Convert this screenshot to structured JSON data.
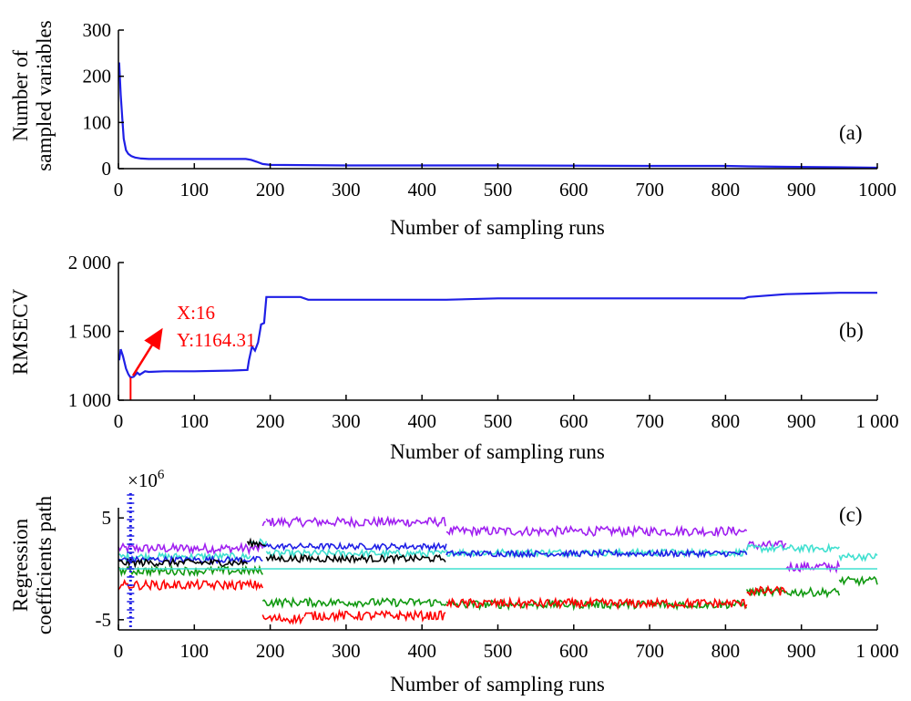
{
  "colors": {
    "blue": "#1f1fe6",
    "red": "#ff0000",
    "green": "#119911",
    "purple": "#a020f0",
    "cyan": "#40e0d0",
    "black": "#000000"
  },
  "chart_data": [
    {
      "id": "a",
      "type": "line",
      "panel_label": "(a)",
      "ylabel": [
        "Number of",
        "sampled variables"
      ],
      "xlabel": "Number of sampling runs",
      "xlim": [
        0,
        1000
      ],
      "ylim": [
        0,
        300
      ],
      "xticks": [
        "0",
        "100",
        "200",
        "300",
        "400",
        "500",
        "600",
        "700",
        "800",
        "900",
        "1000"
      ],
      "yticks": [
        "0",
        "100",
        "200",
        "300"
      ],
      "ytick_values": [
        0,
        100,
        200,
        300
      ],
      "series": [
        {
          "color": "#1f1fe6",
          "x": [
            1,
            3,
            5,
            7,
            10,
            13,
            17,
            22,
            30,
            40,
            60,
            100,
            140,
            168,
            175,
            182,
            190,
            200,
            300,
            500,
            700,
            800,
            830,
            880,
            950,
            1000
          ],
          "y": [
            230,
            160,
            110,
            65,
            40,
            32,
            27,
            24,
            22,
            21,
            21,
            21,
            21,
            21,
            19,
            15,
            10,
            8,
            7,
            7,
            6,
            6,
            5,
            4,
            3,
            2
          ]
        }
      ]
    },
    {
      "id": "b",
      "type": "line",
      "panel_label": "(b)",
      "ylabel": "RMSECV",
      "xlabel": "Number of sampling runs",
      "xlim": [
        0,
        1000
      ],
      "ylim": [
        1000,
        2000
      ],
      "xticks": [
        "0",
        "100",
        "200",
        "300",
        "400",
        "500",
        "600",
        "700",
        "800",
        "900",
        "1 000"
      ],
      "yticks": [
        "1 000",
        "1 500",
        "2 000"
      ],
      "ytick_values": [
        1000,
        1500,
        2000
      ],
      "series": [
        {
          "color": "#1f1fe6",
          "x": [
            1,
            3,
            6,
            10,
            13,
            16,
            20,
            25,
            28,
            35,
            40,
            60,
            100,
            150,
            170,
            172,
            176,
            180,
            184,
            188,
            192,
            195,
            200,
            240,
            250,
            300,
            432,
            500,
            700,
            825,
            830,
            880,
            950,
            1000
          ],
          "y": [
            1290,
            1370,
            1320,
            1230,
            1190,
            1164.31,
            1170,
            1200,
            1185,
            1210,
            1205,
            1210,
            1210,
            1215,
            1220,
            1290,
            1390,
            1360,
            1420,
            1550,
            1560,
            1750,
            1750,
            1750,
            1730,
            1730,
            1730,
            1740,
            1740,
            1740,
            1750,
            1770,
            1780,
            1780
          ]
        }
      ],
      "annotation": {
        "lines": [
          "X:16",
          "Y:1164.31"
        ],
        "x": 16,
        "y": 1164.31
      }
    },
    {
      "id": "c",
      "type": "line",
      "panel_label": "(c)",
      "ylabel": [
        "Regression",
        "coefficients path"
      ],
      "xlabel": "Number of sampling runs",
      "multiplier": "×10",
      "multiplier_exp": "6",
      "xlim": [
        0,
        1000
      ],
      "ylim": [
        -6,
        6
      ],
      "xticks": [
        "0",
        "100",
        "200",
        "300",
        "400",
        "500",
        "600",
        "700",
        "800",
        "900",
        "1 000"
      ],
      "yticks": [
        "-5",
        "5"
      ],
      "ytick_values": [
        -5,
        5
      ],
      "marker_x": 16,
      "series": [
        {
          "color": "#a020f0",
          "segments": [
            [
              0,
              190,
              2.0
            ],
            [
              190,
              195,
              4.5
            ],
            [
              195,
              432,
              4.6
            ],
            [
              432,
              828,
              3.7
            ],
            [
              828,
              880,
              2.3
            ],
            [
              880,
              950,
              0.2
            ]
          ],
          "noise": 0.45
        },
        {
          "color": "#40e0d0",
          "segments": [
            [
              0,
              175,
              1.2
            ],
            [
              175,
              195,
              2.6
            ],
            [
              195,
              432,
              1.5
            ],
            [
              432,
              828,
              1.6
            ],
            [
              828,
              950,
              2.0
            ],
            [
              950,
              1000,
              1.2
            ]
          ],
          "noise": 0.35
        },
        {
          "color": "#1f1fe6",
          "segments": [
            [
              0,
              190,
              0.9
            ],
            [
              190,
              432,
              2.2
            ],
            [
              432,
              828,
              1.5
            ]
          ],
          "noise": 0.3
        },
        {
          "color": "#000000",
          "segments": [
            [
              0,
              170,
              0.6
            ],
            [
              170,
              195,
              2.5
            ],
            [
              195,
              432,
              1.0
            ]
          ],
          "noise": 0.35
        },
        {
          "color": "#119911",
          "segments": [
            [
              0,
              190,
              -0.2
            ],
            [
              190,
              432,
              -3.3
            ],
            [
              432,
              828,
              -3.5
            ],
            [
              828,
              950,
              -2.3
            ],
            [
              950,
              1000,
              -1.2
            ]
          ],
          "noise": 0.4
        },
        {
          "color": "#ff0000",
          "segments": [
            [
              0,
              190,
              -1.6
            ],
            [
              190,
              245,
              -4.9
            ],
            [
              245,
              432,
              -4.6
            ],
            [
              432,
              828,
              -3.4
            ],
            [
              828,
              880,
              -2.2
            ]
          ],
          "noise": 0.45
        },
        {
          "color": "#40e0d0",
          "segments": [
            [
              0,
              1000,
              0.0
            ]
          ],
          "noise": 0.0
        }
      ]
    }
  ]
}
